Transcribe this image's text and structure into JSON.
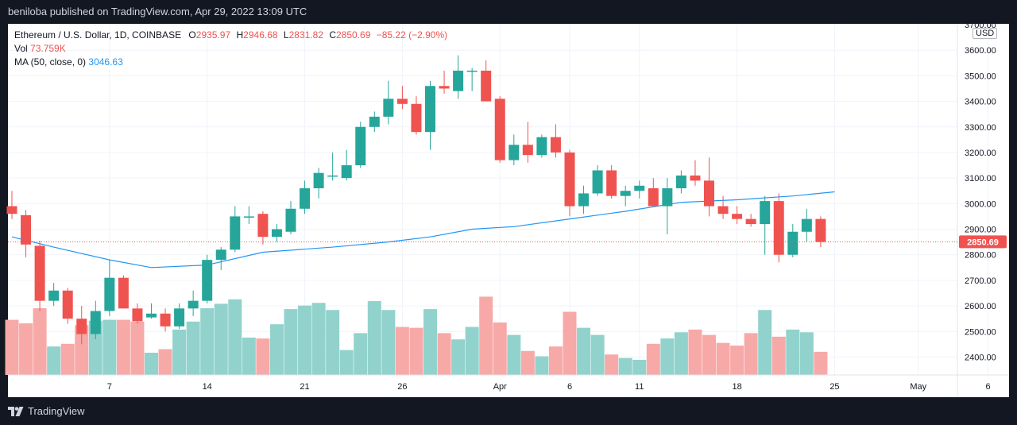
{
  "header": {
    "published": "beniloba published on TradingView.com, Apr 29, 2022 13:09 UTC"
  },
  "legend": {
    "symbol": "Ethereum / U.S. Dollar, 1D, COINBASE",
    "o_label": "O",
    "o": "2935.97",
    "h_label": "H",
    "h": "2946.68",
    "l_label": "L",
    "l": "2831.82",
    "c_label": "C",
    "c": "2850.69",
    "change": "−85.22 (−2.90%)",
    "vol_label": "Vol",
    "vol": "73.759K",
    "ma_label": "MA (50, close, 0)",
    "ma": "3046.63"
  },
  "currency": "USD",
  "footer": {
    "brand": "TradingView"
  },
  "colors": {
    "up": "#26a69a",
    "down": "#ef5350",
    "up_vol": "#92d2cc",
    "down_vol": "#f7a9a7",
    "ma": "#2196f3",
    "background": "#131722"
  },
  "chart_data": {
    "type": "candlestick",
    "y_ticks": [
      2400,
      2500,
      2600,
      2700,
      2800,
      2900,
      3000,
      3100,
      3200,
      3300,
      3400,
      3500,
      3600,
      3700
    ],
    "y_tick_labels": [
      "2400.00",
      "2500.00",
      "2600.00",
      "2700.00",
      "2800.00",
      "2900.00",
      "3000.00",
      "3100.00",
      "3200.00",
      "3300.00",
      "3400.00",
      "3500.00",
      "3600.00",
      "3700.00"
    ],
    "ylim": [
      2330,
      3700
    ],
    "x_labels": [
      {
        "day": 7,
        "label": "7"
      },
      {
        "day": 14,
        "label": "14"
      },
      {
        "day": 21,
        "label": "21"
      },
      {
        "day": 28,
        "label": "26"
      },
      {
        "day": 35,
        "label": "Apr"
      },
      {
        "day": 40,
        "label": "6"
      },
      {
        "day": 45,
        "label": "11"
      },
      {
        "day": 52,
        "label": "18"
      },
      {
        "day": 59,
        "label": "25"
      },
      {
        "day": 65,
        "label": "May"
      },
      {
        "day": 70,
        "label": "6"
      }
    ],
    "x_range": [
      0,
      74
    ],
    "last_price": 2850.69,
    "last_price_label": "2850.69",
    "candles": [
      {
        "o": 2990,
        "h": 3050,
        "l": 2940,
        "c": 2960,
        "v": 0.62
      },
      {
        "o": 2955,
        "h": 2975,
        "l": 2790,
        "c": 2840,
        "v": 0.58
      },
      {
        "o": 2835,
        "h": 2855,
        "l": 2580,
        "c": 2620,
        "v": 0.75
      },
      {
        "o": 2620,
        "h": 2690,
        "l": 2600,
        "c": 2660,
        "v": 0.32
      },
      {
        "o": 2660,
        "h": 2670,
        "l": 2530,
        "c": 2550,
        "v": 0.35
      },
      {
        "o": 2550,
        "h": 2600,
        "l": 2450,
        "c": 2490,
        "v": 0.56
      },
      {
        "o": 2490,
        "h": 2620,
        "l": 2470,
        "c": 2580,
        "v": 0.61
      },
      {
        "o": 2580,
        "h": 2780,
        "l": 2560,
        "c": 2710,
        "v": 0.62
      },
      {
        "o": 2710,
        "h": 2720,
        "l": 2590,
        "c": 2590,
        "v": 0.62
      },
      {
        "o": 2590,
        "h": 2610,
        "l": 2530,
        "c": 2540,
        "v": 0.6
      },
      {
        "o": 2555,
        "h": 2610,
        "l": 2550,
        "c": 2570,
        "v": 0.25
      },
      {
        "o": 2570,
        "h": 2590,
        "l": 2500,
        "c": 2520,
        "v": 0.29
      },
      {
        "o": 2520,
        "h": 2610,
        "l": 2510,
        "c": 2590,
        "v": 0.51
      },
      {
        "o": 2590,
        "h": 2660,
        "l": 2560,
        "c": 2620,
        "v": 0.6
      },
      {
        "o": 2620,
        "h": 2800,
        "l": 2610,
        "c": 2780,
        "v": 0.75
      },
      {
        "o": 2780,
        "h": 2830,
        "l": 2740,
        "c": 2820,
        "v": 0.8
      },
      {
        "o": 2820,
        "h": 2990,
        "l": 2810,
        "c": 2950,
        "v": 0.85
      },
      {
        "o": 2950,
        "h": 2990,
        "l": 2920,
        "c": 2950,
        "v": 0.42
      },
      {
        "o": 2960,
        "h": 2970,
        "l": 2840,
        "c": 2870,
        "v": 0.41
      },
      {
        "o": 2870,
        "h": 2920,
        "l": 2850,
        "c": 2900,
        "v": 0.57
      },
      {
        "o": 2890,
        "h": 3010,
        "l": 2880,
        "c": 2980,
        "v": 0.74
      },
      {
        "o": 2980,
        "h": 3090,
        "l": 2960,
        "c": 3060,
        "v": 0.78
      },
      {
        "o": 3060,
        "h": 3140,
        "l": 3020,
        "c": 3120,
        "v": 0.81
      },
      {
        "o": 3110,
        "h": 3200,
        "l": 3090,
        "c": 3110,
        "v": 0.73
      },
      {
        "o": 3100,
        "h": 3210,
        "l": 3090,
        "c": 3150,
        "v": 0.28
      },
      {
        "o": 3150,
        "h": 3320,
        "l": 3140,
        "c": 3300,
        "v": 0.47
      },
      {
        "o": 3300,
        "h": 3360,
        "l": 3280,
        "c": 3340,
        "v": 0.83
      },
      {
        "o": 3340,
        "h": 3480,
        "l": 3310,
        "c": 3410,
        "v": 0.73
      },
      {
        "o": 3410,
        "h": 3460,
        "l": 3370,
        "c": 3390,
        "v": 0.54
      },
      {
        "o": 3390,
        "h": 3420,
        "l": 3270,
        "c": 3280,
        "v": 0.53
      },
      {
        "o": 3280,
        "h": 3480,
        "l": 3210,
        "c": 3460,
        "v": 0.74
      },
      {
        "o": 3460,
        "h": 3520,
        "l": 3430,
        "c": 3450,
        "v": 0.47
      },
      {
        "o": 3440,
        "h": 3580,
        "l": 3410,
        "c": 3520,
        "v": 0.4
      },
      {
        "o": 3520,
        "h": 3530,
        "l": 3440,
        "c": 3520,
        "v": 0.54
      },
      {
        "o": 3520,
        "h": 3560,
        "l": 3400,
        "c": 3400,
        "v": 0.88
      },
      {
        "o": 3410,
        "h": 3420,
        "l": 3160,
        "c": 3170,
        "v": 0.59
      },
      {
        "o": 3170,
        "h": 3270,
        "l": 3150,
        "c": 3230,
        "v": 0.45
      },
      {
        "o": 3230,
        "h": 3320,
        "l": 3160,
        "c": 3190,
        "v": 0.27
      },
      {
        "o": 3190,
        "h": 3270,
        "l": 3180,
        "c": 3260,
        "v": 0.21
      },
      {
        "o": 3260,
        "h": 3310,
        "l": 3180,
        "c": 3200,
        "v": 0.32
      },
      {
        "o": 3200,
        "h": 3210,
        "l": 2950,
        "c": 2990,
        "v": 0.71
      },
      {
        "o": 2990,
        "h": 3070,
        "l": 2960,
        "c": 3040,
        "v": 0.53
      },
      {
        "o": 3040,
        "h": 3150,
        "l": 3030,
        "c": 3130,
        "v": 0.45
      },
      {
        "o": 3130,
        "h": 3150,
        "l": 3020,
        "c": 3030,
        "v": 0.23
      },
      {
        "o": 3030,
        "h": 3070,
        "l": 2990,
        "c": 3050,
        "v": 0.19
      },
      {
        "o": 3050,
        "h": 3090,
        "l": 3020,
        "c": 3070,
        "v": 0.17
      },
      {
        "o": 3060,
        "h": 3100,
        "l": 2990,
        "c": 2990,
        "v": 0.35
      },
      {
        "o": 2990,
        "h": 3100,
        "l": 2880,
        "c": 3060,
        "v": 0.41
      },
      {
        "o": 3060,
        "h": 3130,
        "l": 3040,
        "c": 3110,
        "v": 0.48
      },
      {
        "o": 3110,
        "h": 3170,
        "l": 3070,
        "c": 3090,
        "v": 0.51
      },
      {
        "o": 3090,
        "h": 3180,
        "l": 2950,
        "c": 2990,
        "v": 0.45
      },
      {
        "o": 2990,
        "h": 3030,
        "l": 2940,
        "c": 2960,
        "v": 0.36
      },
      {
        "o": 2960,
        "h": 2990,
        "l": 2920,
        "c": 2940,
        "v": 0.33
      },
      {
        "o": 2940,
        "h": 2960,
        "l": 2910,
        "c": 2920,
        "v": 0.47
      },
      {
        "o": 2920,
        "h": 3030,
        "l": 2800,
        "c": 3010,
        "v": 0.73
      },
      {
        "o": 3010,
        "h": 3040,
        "l": 2770,
        "c": 2800,
        "v": 0.43
      },
      {
        "o": 2800,
        "h": 2920,
        "l": 2790,
        "c": 2890,
        "v": 0.51
      },
      {
        "o": 2890,
        "h": 2980,
        "l": 2850,
        "c": 2940,
        "v": 0.48
      },
      {
        "o": 2940,
        "h": 2950,
        "l": 2830,
        "c": 2850,
        "v": 0.26
      }
    ],
    "volume_max_label": "",
    "ma": [
      {
        "i": 0,
        "v": 2870
      },
      {
        "i": 3,
        "v": 2830
      },
      {
        "i": 7,
        "v": 2780
      },
      {
        "i": 10,
        "v": 2750
      },
      {
        "i": 14,
        "v": 2760
      },
      {
        "i": 18,
        "v": 2810
      },
      {
        "i": 23,
        "v": 2830
      },
      {
        "i": 27,
        "v": 2850
      },
      {
        "i": 30,
        "v": 2870
      },
      {
        "i": 33,
        "v": 2900
      },
      {
        "i": 36,
        "v": 2910
      },
      {
        "i": 40,
        "v": 2940
      },
      {
        "i": 44,
        "v": 2970
      },
      {
        "i": 48,
        "v": 3005
      },
      {
        "i": 52,
        "v": 3015
      },
      {
        "i": 56,
        "v": 3030
      },
      {
        "i": 59,
        "v": 3046
      }
    ]
  }
}
